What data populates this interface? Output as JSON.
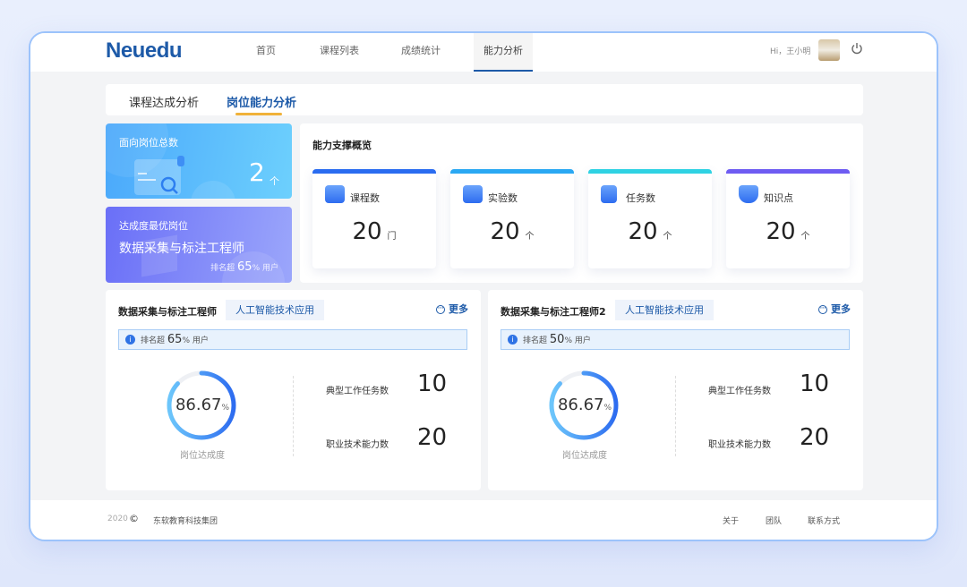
{
  "header": {
    "logo": "Neuedu",
    "nav": [
      "首页",
      "课程列表",
      "成绩统计",
      "能力分析"
    ],
    "active_nav": "能力分析",
    "greeting": "Hi，王小明"
  },
  "tabs": [
    "课程达成分析",
    "岗位能力分析"
  ],
  "active_tab": "岗位能力分析",
  "summary": {
    "total": {
      "label": "面向岗位总数",
      "value": "2",
      "unit": "个"
    },
    "best": {
      "label": "达成度最优岗位",
      "name": "数据采集与标注工程师",
      "rank_prefix": "排名超",
      "rank_value": "65",
      "rank_suffix": "% 用户"
    }
  },
  "overview": {
    "title": "能力支撑概览",
    "stats": [
      {
        "label": "课程数",
        "value": "20",
        "unit": "门",
        "color": "#2a6cf0",
        "icon": "folder-user-icon"
      },
      {
        "label": "实验数",
        "value": "20",
        "unit": "个",
        "color": "#2aa8f3",
        "icon": "folder-flask-icon"
      },
      {
        "label": "任务数",
        "value": "20",
        "unit": "个",
        "color": "#2fd2e3",
        "icon": "clipboard-icon"
      },
      {
        "label": "知识点",
        "value": "20",
        "unit": "个",
        "color": "#6e5cf2",
        "icon": "graduation-cap-icon"
      }
    ]
  },
  "positions": [
    {
      "title": "数据采集与标注工程师",
      "tag": "人工智能技术应用",
      "more": "更多",
      "rank_prefix": "排名超",
      "rank_value": "65",
      "rank_suffix": "% 用户",
      "degree": "86.67",
      "degree_unit": "%",
      "degree_label": "岗位达成度",
      "tasks_label": "典型工作任务数",
      "tasks": "10",
      "abilities_label": "职业技术能力数",
      "abilities": "20"
    },
    {
      "title": "数据采集与标注工程师2",
      "tag": "人工智能技术应用",
      "more": "更多",
      "rank_prefix": "排名超",
      "rank_value": "50",
      "rank_suffix": "% 用户",
      "degree": "86.67",
      "degree_unit": "%",
      "degree_label": "岗位达成度",
      "tasks_label": "典型工作任务数",
      "tasks": "10",
      "abilities_label": "职业技术能力数",
      "abilities": "20"
    }
  ],
  "footer": {
    "year": "2020",
    "company": "东软教育科技集团",
    "links": [
      "关于",
      "团队",
      "联系方式"
    ]
  }
}
